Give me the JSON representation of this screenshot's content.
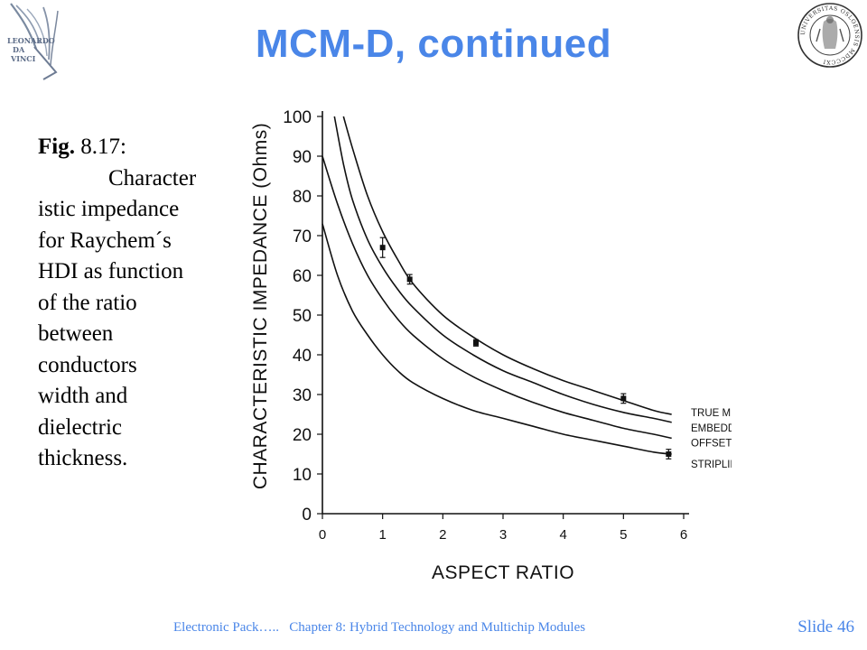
{
  "slide": {
    "title": "MCM-D, continued",
    "caption": {
      "label": "Fig.",
      "number": " 8.17:",
      "lines": [
        "Character",
        "istic impedance",
        "for Raychem´s",
        "HDI as function",
        "of the ratio",
        "between",
        "conductors",
        "width and",
        "dielectric",
        "thickness."
      ]
    },
    "footer": "Electronic Pack…..   Chapter 8: Hybrid Technology and Multichip Modules",
    "slide_number": "Slide 46"
  },
  "logos": {
    "left": {
      "name": "leonardo-da-vinci-logo",
      "text": [
        "LEONARDO",
        "DA",
        "VINCI"
      ]
    },
    "right": {
      "name": "university-of-oslo-seal",
      "text": "UNIVERSITAS OSLOENSIS MDCCCXI"
    }
  },
  "colors": {
    "title": "#4a86e8",
    "footer": "#4a86e8",
    "ink": "#111111"
  },
  "chart_data": {
    "type": "line",
    "title": "",
    "xlabel": "ASPECT RATIO",
    "ylabel": "CHARACTERISTIC IMPEDANCE (Ohms)",
    "xlim": [
      0,
      6
    ],
    "ylim": [
      0,
      100
    ],
    "x_ticks": [
      0,
      1,
      2,
      3,
      4,
      5,
      6
    ],
    "y_ticks": [
      0,
      10,
      20,
      30,
      40,
      50,
      60,
      70,
      80,
      90,
      100
    ],
    "grid": false,
    "legend": "right, labels at line ends",
    "series": [
      {
        "name": "TRUE MICROSTRIP",
        "x": [
          0.35,
          0.5,
          0.75,
          1,
          1.25,
          1.5,
          2,
          2.5,
          3,
          3.5,
          4,
          4.5,
          5,
          5.5,
          5.8
        ],
        "y": [
          100,
          92,
          80,
          71,
          64,
          58,
          50,
          44.5,
          40,
          36.5,
          33.5,
          31,
          28.5,
          26,
          25
        ]
      },
      {
        "name": "EMBEDDED MICROSTRIP",
        "x": [
          0.2,
          0.35,
          0.5,
          0.75,
          1,
          1.25,
          1.5,
          2,
          2.5,
          3,
          3.5,
          4,
          4.5,
          5,
          5.5,
          5.8
        ],
        "y": [
          100,
          88,
          79,
          69,
          62,
          56.5,
          52,
          45,
          40,
          36,
          33,
          30,
          27.5,
          25.5,
          24,
          23
        ]
      },
      {
        "name": "OFFSET STRIPLINE",
        "x": [
          0,
          0.25,
          0.5,
          0.75,
          1,
          1.25,
          1.5,
          2,
          2.5,
          3,
          3.5,
          4,
          4.5,
          5,
          5.5,
          5.8
        ],
        "y": [
          90,
          78,
          68,
          60,
          54,
          49,
          45,
          39,
          34.5,
          31,
          28,
          25.5,
          23.5,
          21.5,
          20,
          19
        ]
      },
      {
        "name": "STRIPLINE",
        "x": [
          0,
          0.25,
          0.5,
          0.75,
          1,
          1.25,
          1.5,
          2,
          2.5,
          3,
          3.5,
          4,
          4.5,
          5,
          5.5,
          5.8
        ],
        "y": [
          73,
          60,
          51,
          45,
          40,
          36,
          33,
          29,
          26,
          24,
          22,
          20,
          18.5,
          17,
          15.5,
          15
        ]
      }
    ],
    "measured_points": [
      {
        "x": 1.0,
        "y": 67,
        "err": 2.5
      },
      {
        "x": 1.45,
        "y": 59,
        "err": 1.2
      },
      {
        "x": 2.55,
        "y": 43,
        "err": 0.8
      },
      {
        "x": 5.0,
        "y": 29,
        "err": 1.2
      },
      {
        "x": 5.75,
        "y": 15,
        "err": 1.2
      }
    ]
  }
}
